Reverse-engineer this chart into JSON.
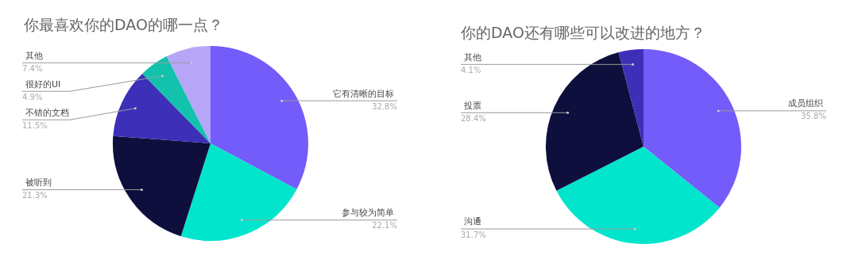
{
  "chart_data": [
    {
      "type": "pie",
      "title": "你最喜欢你的DAO的哪一点？",
      "categories": [
        "它有清晰的目标",
        "参与较为简单",
        "被听到",
        "不错的文档",
        "很好的UI",
        "其他"
      ],
      "values": [
        32.8,
        22.1,
        21.3,
        11.5,
        4.9,
        7.4
      ],
      "colors": [
        "#735cfa",
        "#00e5cc",
        "#0f0f3d",
        "#3e2fb8",
        "#13c2ad",
        "#b7a6f8"
      ],
      "value_labels": [
        "32.8%",
        "22.1%",
        "21.3%",
        "11.5%",
        "4.9%",
        "7.4%"
      ],
      "legend": false
    },
    {
      "type": "pie",
      "title": "你的DAO还有哪些可以改进的地方？",
      "categories": [
        "成员组织",
        "沟通",
        "投票",
        "其他"
      ],
      "values": [
        35.8,
        31.7,
        28.4,
        4.1
      ],
      "colors": [
        "#735cfa",
        "#00e5cc",
        "#0f0f3d",
        "#3e2fb8"
      ],
      "value_labels": [
        "35.8%",
        "31.7%",
        "28.4%",
        "4.1%"
      ],
      "legend": false
    }
  ]
}
